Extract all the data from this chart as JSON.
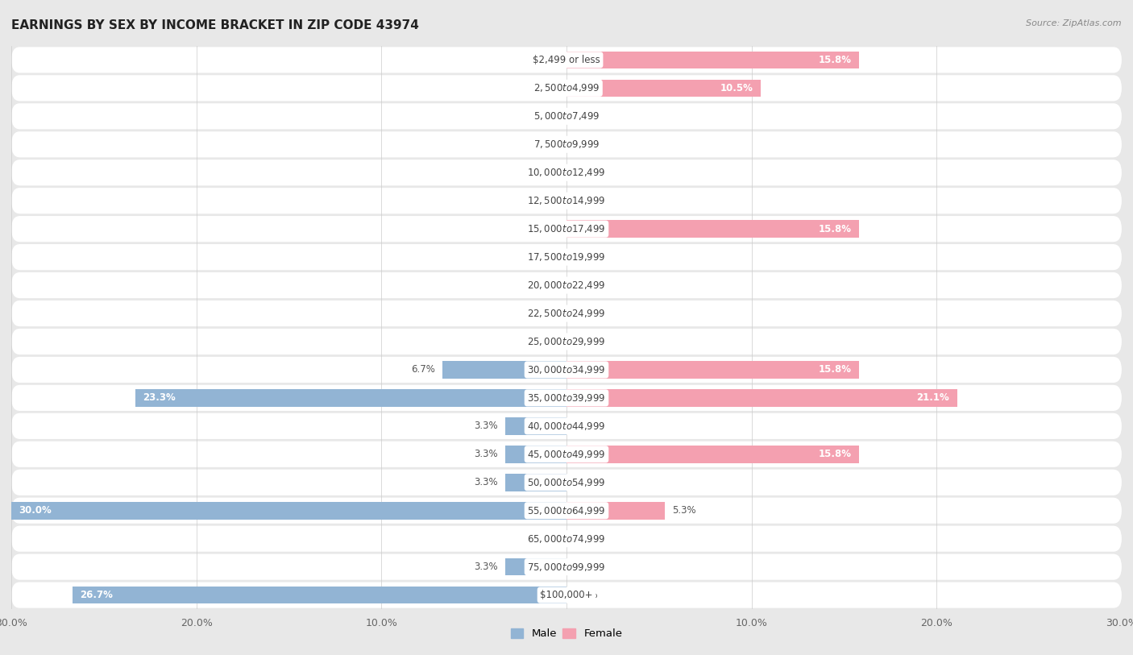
{
  "title": "EARNINGS BY SEX BY INCOME BRACKET IN ZIP CODE 43974",
  "source": "Source: ZipAtlas.com",
  "categories": [
    "$2,499 or less",
    "$2,500 to $4,999",
    "$5,000 to $7,499",
    "$7,500 to $9,999",
    "$10,000 to $12,499",
    "$12,500 to $14,999",
    "$15,000 to $17,499",
    "$17,500 to $19,999",
    "$20,000 to $22,499",
    "$22,500 to $24,999",
    "$25,000 to $29,999",
    "$30,000 to $34,999",
    "$35,000 to $39,999",
    "$40,000 to $44,999",
    "$45,000 to $49,999",
    "$50,000 to $54,999",
    "$55,000 to $64,999",
    "$65,000 to $74,999",
    "$75,000 to $99,999",
    "$100,000+"
  ],
  "male_values": [
    0.0,
    0.0,
    0.0,
    0.0,
    0.0,
    0.0,
    0.0,
    0.0,
    0.0,
    0.0,
    0.0,
    6.7,
    23.3,
    3.3,
    3.3,
    3.3,
    30.0,
    0.0,
    3.3,
    26.7
  ],
  "female_values": [
    15.8,
    10.5,
    0.0,
    0.0,
    0.0,
    0.0,
    15.8,
    0.0,
    0.0,
    0.0,
    0.0,
    15.8,
    21.1,
    0.0,
    15.8,
    0.0,
    5.3,
    0.0,
    0.0,
    0.0
  ],
  "male_color": "#92b4d4",
  "female_color": "#f4a0b0",
  "male_label": "Male",
  "female_label": "Female",
  "xlim": 30.0,
  "bar_height": 0.62,
  "bg_color": "#e8e8e8",
  "row_bg": "#ffffff",
  "title_fontsize": 11,
  "axis_label_fontsize": 9,
  "value_fontsize": 8.5,
  "category_fontsize": 8.5
}
